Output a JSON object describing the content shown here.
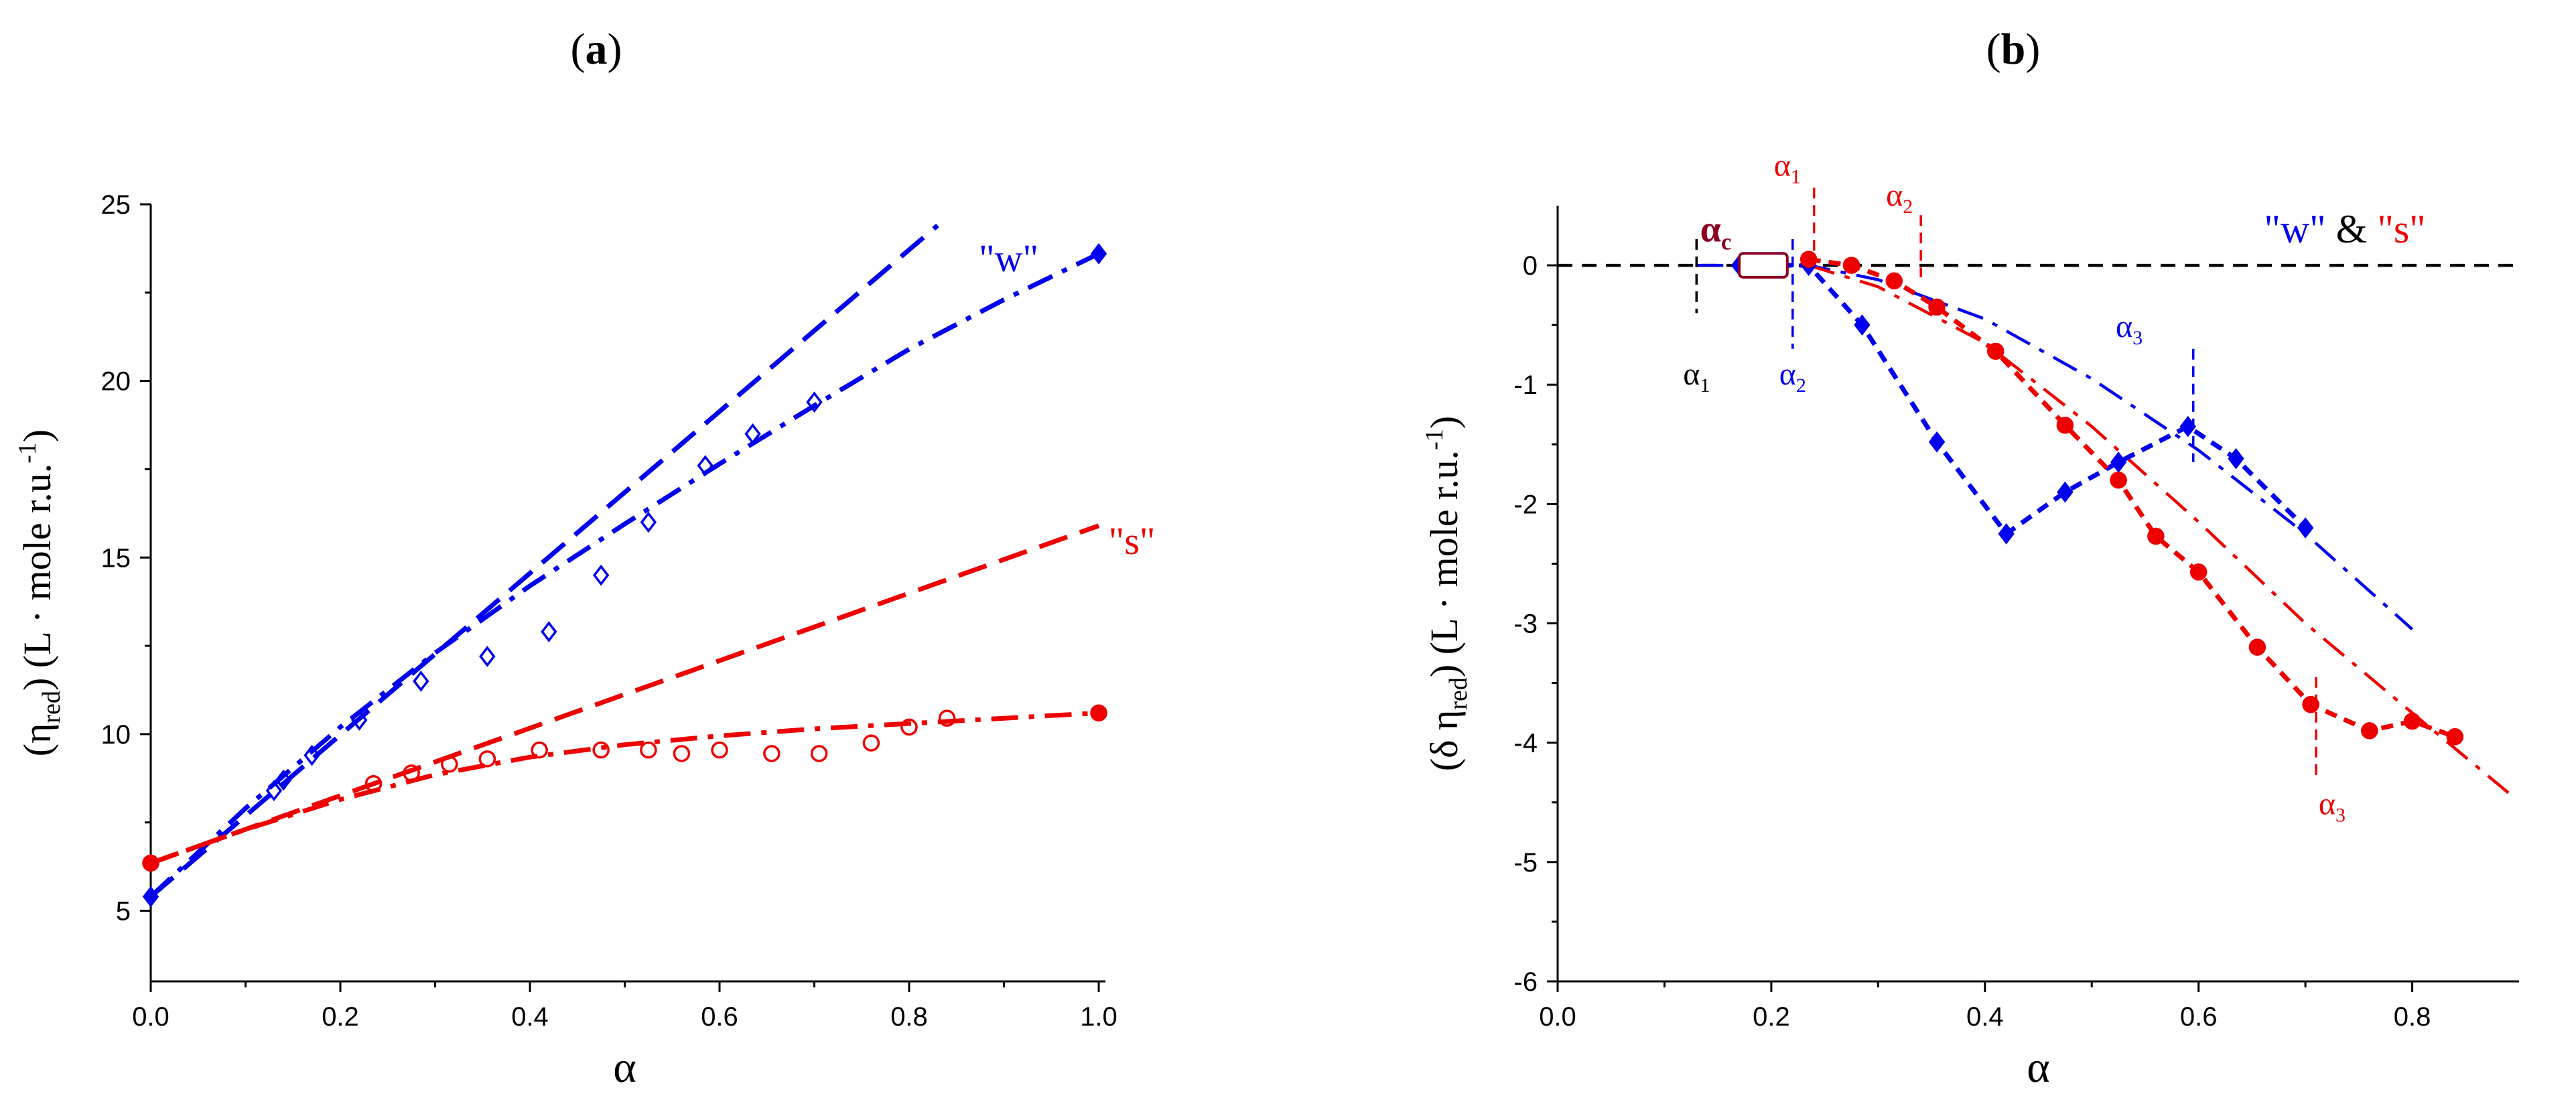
{
  "colors": {
    "w": "#0000ee",
    "s": "#ee0000",
    "black": "#000000",
    "alpha_c": "#8b0020"
  },
  "chart_data": [
    {
      "type": "scatter",
      "panel_label": "(a)",
      "xlabel": "α",
      "ylabel": {
        "prefix": "(η",
        "sub": "red",
        "mid": ") (L · mole r.u.",
        "sup": "-1",
        "suffix": ")"
      },
      "xlim": [
        0,
        1.0
      ],
      "ylim": [
        3,
        25
      ],
      "x_ticks": [
        0.0,
        0.2,
        0.4,
        0.6,
        0.8,
        1.0
      ],
      "x_tick_labels": [
        "0.0",
        "0.2",
        "0.4",
        "0.6",
        "0.8",
        "1.0"
      ],
      "y_ticks": [
        5,
        10,
        15,
        20,
        25
      ],
      "y_tick_labels": [
        "5",
        "10",
        "15",
        "20",
        "25"
      ],
      "series": [
        {
          "name": "w data",
          "color_key": "w",
          "marker": "open-diamond",
          "x": [
            0.13,
            0.14,
            0.17,
            0.22,
            0.285,
            0.355,
            0.42,
            0.475,
            0.525,
            0.585,
            0.635,
            0.7
          ],
          "y": [
            8.4,
            8.7,
            9.4,
            10.4,
            11.5,
            12.2,
            12.9,
            14.5,
            16.0,
            17.6,
            18.5,
            19.4
          ]
        },
        {
          "name": "w endpoints",
          "color_key": "w",
          "marker": "filled-diamond",
          "x": [
            0.0,
            1.0
          ],
          "y": [
            5.4,
            23.6
          ]
        },
        {
          "name": "s data",
          "color_key": "s",
          "marker": "open-circle",
          "x": [
            0.235,
            0.275,
            0.315,
            0.355,
            0.41,
            0.475,
            0.525,
            0.56,
            0.6,
            0.655,
            0.705,
            0.76,
            0.8,
            0.84
          ],
          "y": [
            8.6,
            8.9,
            9.15,
            9.3,
            9.55,
            9.55,
            9.55,
            9.45,
            9.55,
            9.45,
            9.45,
            9.75,
            10.2,
            10.45
          ]
        },
        {
          "name": "s endpoints",
          "color_key": "s",
          "marker": "filled-circle",
          "x": [
            0.0,
            1.0
          ],
          "y": [
            6.35,
            10.6
          ]
        },
        {
          "name": "w ideal",
          "color_key": "w",
          "line": "dash",
          "x": [
            0.0,
            0.83
          ],
          "y": [
            5.4,
            24.4
          ]
        },
        {
          "name": "w fit",
          "color_key": "w",
          "line": "dashdot",
          "x": [
            0.0,
            0.1,
            0.2,
            0.3,
            0.4,
            0.5,
            0.6,
            0.7,
            0.8,
            0.9,
            1.0
          ],
          "y": [
            5.4,
            7.9,
            10.2,
            12.3,
            14.2,
            15.95,
            17.65,
            19.3,
            20.9,
            22.3,
            23.6
          ]
        },
        {
          "name": "s ideal",
          "color_key": "s",
          "line": "dash",
          "x": [
            0.0,
            1.0
          ],
          "y": [
            6.35,
            15.9
          ]
        },
        {
          "name": "s fit",
          "color_key": "s",
          "line": "dashdot",
          "x": [
            0.0,
            0.1,
            0.2,
            0.3,
            0.4,
            0.5,
            0.6,
            0.7,
            0.8,
            0.9,
            1.0
          ],
          "y": [
            6.35,
            7.3,
            8.15,
            8.85,
            9.35,
            9.7,
            9.95,
            10.15,
            10.3,
            10.45,
            10.6
          ]
        }
      ],
      "annotations": [
        {
          "text": "\"w\"",
          "x": 0.905,
          "y": 23.1,
          "color_key": "w"
        },
        {
          "text": "\"s\"",
          "x": 1.035,
          "y": 15.1,
          "color_key": "s"
        }
      ]
    },
    {
      "type": "scatter",
      "panel_label": "(b)",
      "xlabel": "α",
      "ylabel": {
        "prefix": "(δ η",
        "sub": "red",
        "mid": ")  (L · mole r.u.",
        "sup": "-1",
        "suffix": ")"
      },
      "xlim": [
        0,
        0.9
      ],
      "ylim": [
        -6,
        0.5
      ],
      "x_ticks": [
        0.0,
        0.2,
        0.4,
        0.6,
        0.8
      ],
      "x_tick_labels": [
        "0.0",
        "0.2",
        "0.4",
        "0.6",
        "0.8"
      ],
      "y_ticks": [
        0,
        -1,
        -2,
        -3,
        -4,
        -5,
        -6
      ],
      "y_tick_labels": [
        "0",
        "-1",
        "-2",
        "-3",
        "-4",
        "-5",
        "-6"
      ],
      "series": [
        {
          "name": "w",
          "color_key": "w",
          "marker": "filled-diamond",
          "line": "short-dash",
          "x": [
            0.17,
            0.235,
            0.285,
            0.355,
            0.42,
            0.475,
            0.525,
            0.59,
            0.635,
            0.7
          ],
          "y": [
            0.0,
            0.0,
            -0.5,
            -1.48,
            -2.25,
            -1.9,
            -1.65,
            -1.35,
            -1.62,
            -2.2
          ]
        },
        {
          "name": "s",
          "color_key": "s",
          "marker": "filled-circle",
          "line": "short-dash",
          "x": [
            0.235,
            0.275,
            0.315,
            0.355,
            0.41,
            0.475,
            0.525,
            0.56,
            0.6,
            0.655,
            0.705,
            0.76,
            0.8,
            0.84
          ],
          "y": [
            0.05,
            0.0,
            -0.13,
            -0.35,
            -0.72,
            -1.34,
            -1.8,
            -2.27,
            -2.57,
            -3.2,
            -3.68,
            -3.9,
            -3.82,
            -3.95
          ]
        },
        {
          "name": "w fit",
          "color_key": "w",
          "line": "dashdot",
          "x": [
            0.13,
            0.235,
            0.3,
            0.4,
            0.5,
            0.6,
            0.7,
            0.8
          ],
          "y": [
            0.0,
            0.0,
            -0.12,
            -0.45,
            -0.95,
            -1.55,
            -2.25,
            -3.05
          ]
        },
        {
          "name": "s fit",
          "color_key": "s",
          "line": "dashdot",
          "x": [
            0.235,
            0.3,
            0.4,
            0.5,
            0.6,
            0.7,
            0.8,
            0.89
          ],
          "y": [
            0.0,
            -0.18,
            -0.65,
            -1.35,
            -2.15,
            -3.0,
            -3.75,
            -4.42
          ]
        }
      ],
      "zero_line": {
        "y": 0,
        "x": [
          0.0,
          0.9
        ]
      },
      "markers": [
        {
          "label": "α1",
          "base": "α",
          "sub": "1",
          "color_key": "black",
          "x": 0.13,
          "y1": 0.22,
          "y2": -0.4,
          "tx": 0.13,
          "ty": -1.0
        },
        {
          "label": "α2",
          "base": "α",
          "sub": "2",
          "color_key": "w",
          "x": 0.22,
          "y1": 0.22,
          "y2": -0.7,
          "tx": 0.22,
          "ty": -1.0
        },
        {
          "label": "α1",
          "base": "α",
          "sub": "1",
          "color_key": "s",
          "x": 0.24,
          "y1": 0.65,
          "y2": 0.05,
          "tx": 0.215,
          "ty": 0.75
        },
        {
          "label": "α2",
          "base": "α",
          "sub": "2",
          "color_key": "s",
          "x": 0.34,
          "y1": 0.42,
          "y2": -0.1,
          "tx": 0.32,
          "ty": 0.5
        },
        {
          "label": "α3",
          "base": "α",
          "sub": "3",
          "color_key": "w",
          "x": 0.595,
          "y1": -0.7,
          "y2": -1.65,
          "tx": 0.535,
          "ty": -0.6
        },
        {
          "label": "α3",
          "base": "α",
          "sub": "3",
          "color_key": "s",
          "x": 0.71,
          "y1": -3.45,
          "y2": -4.3,
          "tx": 0.725,
          "ty": -4.6
        }
      ],
      "alpha_c": {
        "base": "α",
        "sub": "c",
        "color_key": "alpha_c",
        "box_x": [
          0.17,
          0.215
        ],
        "box_y": [
          -0.1,
          0.1
        ],
        "tx": 0.148,
        "ty": 0.2
      },
      "legend_text": {
        "w": "\"w\"",
        "amp": "&",
        "s": "\"s\""
      }
    }
  ]
}
